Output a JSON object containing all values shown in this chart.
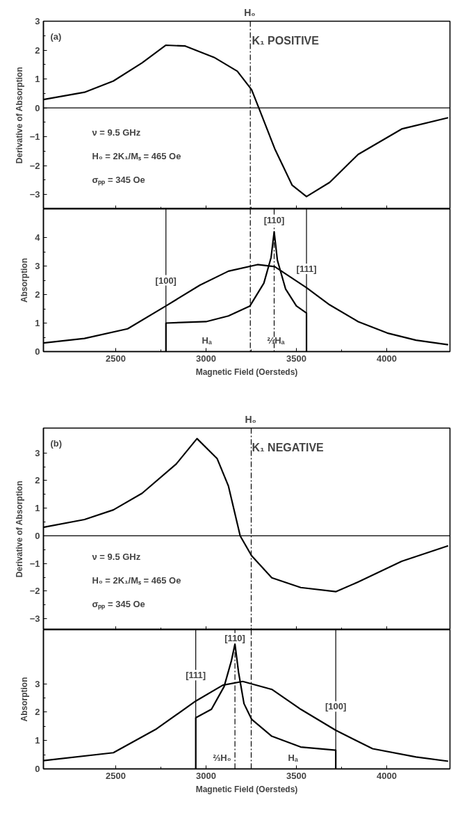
{
  "chart_data": [
    {
      "type": "line",
      "ylabel": "Derivative of Absorption",
      "xlim": [
        2100,
        4350
      ],
      "ylim": [
        -3.5,
        3
      ],
      "yticks": [
        -3,
        -2,
        -1,
        0,
        1,
        2,
        3
      ],
      "xticks": [
        2500,
        3000,
        3500,
        4000
      ],
      "tick_labels": "y",
      "grid": false,
      "marker": "none",
      "line_style": "solid",
      "annotations": [
        "(a)",
        "K₁ POSITIVE",
        "ν = 9.5 GHz",
        "H₀ = 2K₁/Mₛ = 465 Oe",
        "σₚₚ = 345 Oe"
      ],
      "ref_lines": [
        {
          "axis": "x",
          "value": 3245,
          "label": "H₀",
          "line_style": "dashed"
        },
        {
          "axis": "y",
          "value": 0
        }
      ],
      "series": [
        {
          "color": "#000000",
          "x": [
            2100,
            2327,
            2487,
            2646,
            2778,
            2885,
            3044,
            3173,
            3252,
            3292,
            3380,
            3476,
            3556,
            3684,
            3842,
            4083,
            4340
          ],
          "values": [
            0.29,
            0.54,
            0.93,
            1.56,
            2.17,
            2.14,
            1.75,
            1.27,
            0.63,
            0.0,
            -1.41,
            -2.67,
            -3.07,
            -2.58,
            -1.61,
            -0.73,
            -0.34
          ]
        }
      ]
    },
    {
      "type": "line",
      "xlabel": "Magnetic Field (Oersteds)",
      "ylabel": "Absorption",
      "xlim": [
        2100,
        4350
      ],
      "ylim": [
        0,
        5
      ],
      "yticks": [
        0,
        1,
        2,
        3,
        4
      ],
      "xticks": [
        2500,
        3000,
        3500,
        4000
      ],
      "grid": false,
      "marker": "none",
      "line_style": "solid",
      "annotations": [
        "Hₐ",
        "⅔Hₐ",
        {
          "text": "[100]",
          "x": 2778,
          "y": 2.5
        },
        {
          "text": "[110]",
          "x": 3377,
          "y": 4.6
        },
        {
          "text": "[111]",
          "x": 3556,
          "y": 2.9
        }
      ],
      "ref_lines": [
        {
          "axis": "x",
          "value": 3245,
          "line_style": "dashed"
        },
        {
          "axis": "x",
          "value": 2778
        },
        {
          "axis": "x",
          "value": 3377,
          "line_style": "dashed"
        },
        {
          "axis": "x",
          "value": 3556
        }
      ],
      "series": [
        {
          "color": "#000000",
          "x": [
            2100,
            2327,
            2566,
            2778,
            2966,
            3124,
            3285,
            3380,
            3556,
            3684,
            3842,
            4003,
            4162,
            4340
          ],
          "values": [
            0.3,
            0.46,
            0.8,
            1.6,
            2.33,
            2.82,
            3.05,
            2.98,
            2.24,
            1.64,
            1.05,
            0.65,
            0.4,
            0.24
          ]
        },
        {
          "color": "#000000",
          "x": [
            2778,
            2778,
            3000,
            3124,
            3243,
            3320,
            3360,
            3377,
            3395,
            3440,
            3500,
            3556,
            3556
          ],
          "values": [
            0,
            1.0,
            1.05,
            1.25,
            1.6,
            2.4,
            3.3,
            4.2,
            3.2,
            2.2,
            1.6,
            1.35,
            0
          ]
        }
      ]
    },
    {
      "type": "line",
      "ylabel": "Derivative of Absorption",
      "xlim": [
        2100,
        4350
      ],
      "ylim": [
        -3.4,
        3.9
      ],
      "yticks": [
        -3,
        -2,
        -1,
        0,
        1,
        2,
        3
      ],
      "xticks": [
        2500,
        3000,
        3500,
        4000
      ],
      "tick_labels": "y",
      "grid": false,
      "marker": "none",
      "line_style": "solid",
      "annotations": [
        "(b)",
        "K₁  NEGATIVE",
        "ν = 9.5 GHz",
        "H₀ = 2K₁/Mₛ = 465 Oe",
        "σₚₚ = 345 Oe"
      ],
      "ref_lines": [
        {
          "axis": "x",
          "value": 3250,
          "label": "H₀",
          "line_style": "dashed"
        },
        {
          "axis": "y",
          "value": 0
        }
      ],
      "series": [
        {
          "color": "#000000",
          "x": [
            2100,
            2327,
            2487,
            2646,
            2835,
            2950,
            3061,
            3124,
            3189,
            3252,
            3364,
            3524,
            3718,
            3842,
            4083,
            4340
          ],
          "values": [
            0.31,
            0.59,
            0.94,
            1.54,
            2.6,
            3.52,
            2.8,
            1.8,
            0.0,
            -0.72,
            -1.52,
            -1.87,
            -2.02,
            -1.67,
            -0.92,
            -0.36
          ]
        }
      ]
    },
    {
      "type": "line",
      "xlabel": "Magnetic Field (Oersteds)",
      "ylabel": "Absorption",
      "xlim": [
        2100,
        4350
      ],
      "ylim": [
        0,
        4.9
      ],
      "yticks": [
        0,
        1,
        2,
        3
      ],
      "xticks": [
        2500,
        3000,
        3500,
        4000
      ],
      "grid": false,
      "marker": "none",
      "line_style": "solid",
      "annotations": [
        "⅔H₀",
        "Hₐ",
        {
          "text": "[111]",
          "x": 2943,
          "y": 3.3
        },
        {
          "text": "[110]",
          "x": 3160,
          "y": 4.6
        },
        {
          "text": "[100]",
          "x": 3718,
          "y": 2.2
        }
      ],
      "ref_lines": [
        {
          "axis": "x",
          "value": 3250,
          "line_style": "dashed"
        },
        {
          "axis": "x",
          "value": 2943
        },
        {
          "axis": "x",
          "value": 3160,
          "line_style": "dashed"
        },
        {
          "axis": "x",
          "value": 3718
        }
      ],
      "series": [
        {
          "color": "#000000",
          "x": [
            2100,
            2487,
            2726,
            2943,
            3093,
            3203,
            3364,
            3524,
            3718,
            3922,
            4162,
            4340
          ],
          "values": [
            0.29,
            0.57,
            1.41,
            2.39,
            2.95,
            3.08,
            2.8,
            2.1,
            1.36,
            0.71,
            0.42,
            0.27
          ]
        },
        {
          "color": "#000000",
          "x": [
            2943,
            2943,
            3030,
            3100,
            3140,
            3160,
            3180,
            3210,
            3252,
            3364,
            3524,
            3718,
            3718
          ],
          "values": [
            0,
            1.8,
            2.1,
            2.9,
            3.8,
            4.4,
            3.4,
            2.3,
            1.75,
            1.15,
            0.77,
            0.66,
            0
          ]
        }
      ]
    }
  ]
}
